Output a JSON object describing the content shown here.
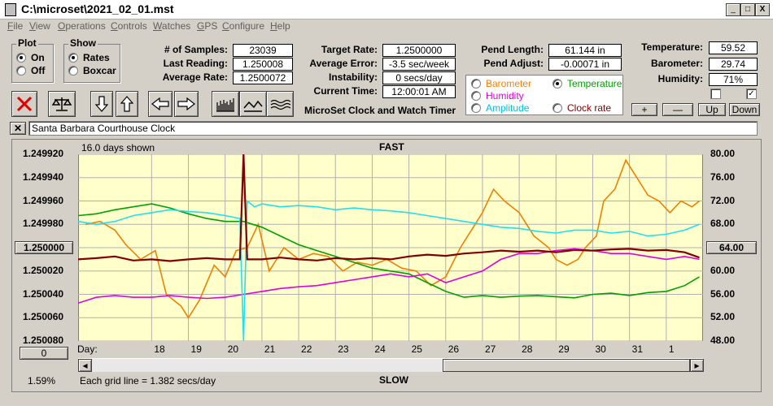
{
  "window": {
    "title": "C:\\microset\\2021_02_01.mst",
    "min": "_",
    "max": "□",
    "close": "X"
  },
  "menu": [
    "File",
    "View",
    "Operations",
    "Controls",
    "Watches",
    "GPS",
    "Configure",
    "Help"
  ],
  "plot_group": {
    "title": "Plot",
    "options": [
      "On",
      "Off"
    ],
    "selected": "On"
  },
  "show_group": {
    "title": "Show",
    "options": [
      "Rates",
      "Boxcar"
    ],
    "selected": "Rates"
  },
  "stats": {
    "samples_label": "# of Samples:",
    "samples": "23039",
    "last_reading_label": "Last Reading:",
    "last_reading": "1.250008",
    "average_rate_label": "Average Rate:",
    "average_rate": "1.2500072",
    "target_rate_label": "Target Rate:",
    "target_rate": "1.2500000",
    "average_error_label": "Average Error:",
    "average_error": "-3.5 sec/week",
    "instability_label": "Instability:",
    "instability": "0 secs/day",
    "current_time_label": "Current Time:",
    "current_time": "12:00:01 AM",
    "pend_length_label": "Pend Length:",
    "pend_length": "61.144 in",
    "pend_adjust_label": "Pend Adjust:",
    "pend_adjust": "-0.00071 in",
    "temperature_label": "Temperature:",
    "temperature": "59.52",
    "barometer_label": "Barometer:",
    "barometer": "29.74",
    "humidity_label": "Humidity:",
    "humidity": "71%"
  },
  "app_title": "MicroSet Clock and Watch Timer",
  "series_options": [
    {
      "label": "Barometer",
      "color": "#ff8000",
      "selected": false
    },
    {
      "label": "Temperature",
      "color": "#00a000",
      "selected": true
    },
    {
      "label": "Humidity",
      "color": "#e000e0",
      "selected": false
    },
    {
      "label": "Amplitude",
      "color": "#00c0e0",
      "selected": false
    },
    {
      "label": "Clock rate",
      "color": "#800000",
      "selected": false
    }
  ],
  "scale_buttons": [
    "+",
    "—",
    "Up",
    "Down"
  ],
  "clock_name": "Santa Barbara Courthouse Clock",
  "chart_labels": {
    "days_shown": "16.0 days shown",
    "fast": "FAST",
    "slow": "SLOW",
    "grid_note": "Each grid line = 1.382 secs/day",
    "percent": "1.59%",
    "center_left": "1.250000",
    "center_right": "64.00",
    "left_bottom_btn": "0",
    "day_prefix": "Day:"
  },
  "chart_data": {
    "type": "line",
    "left_axis_ticks": [
      "1.249920",
      "1.249940",
      "1.249960",
      "1.249980",
      "1.250000",
      "1.250020",
      "1.250040",
      "1.250060",
      "1.250080"
    ],
    "right_axis_ticks": [
      "80.00",
      "76.00",
      "72.00",
      "68.00",
      "64.00",
      "60.00",
      "56.00",
      "52.00",
      "48.00"
    ],
    "days": [
      "18",
      "19",
      "20",
      "21",
      "22",
      "23",
      "24",
      "25",
      "26",
      "27",
      "28",
      "29",
      "30",
      "31",
      "1"
    ],
    "right_ylim": [
      48,
      80
    ],
    "series": [
      {
        "name": "Barometer",
        "color": "#f08000",
        "x": [
          16.2,
          16.6,
          17.0,
          17.3,
          17.7,
          18.1,
          18.4,
          18.8,
          19.0,
          19.3,
          19.7,
          20.0,
          20.3,
          20.6,
          20.9,
          21.2,
          21.6,
          22.0,
          22.4,
          22.8,
          23.2,
          23.6,
          24.0,
          24.4,
          24.8,
          25.2,
          25.6,
          26.0,
          26.4,
          26.8,
          27.0,
          27.3,
          27.6,
          28.0,
          28.4,
          28.8,
          29.0,
          29.3,
          29.6,
          29.8,
          30.1,
          30.3,
          30.6,
          30.9,
          31.2,
          31.5,
          31.8,
          32.1,
          32.4,
          32.7,
          32.9
        ],
        "y": [
          68.0,
          68.5,
          67.0,
          64.5,
          62.0,
          63.5,
          56.0,
          54.0,
          52.0,
          55.0,
          61.0,
          59.0,
          63.5,
          64.0,
          68.0,
          60.0,
          64.0,
          62.0,
          63.0,
          62.5,
          60.0,
          61.5,
          61.0,
          62.0,
          60.5,
          60.0,
          57.5,
          59.0,
          64.0,
          68.0,
          70.0,
          74.0,
          72.0,
          70.0,
          66.0,
          64.0,
          62.0,
          61.0,
          62.0,
          64.0,
          66.0,
          72.0,
          74.0,
          79.0,
          76.0,
          73.0,
          72.0,
          70.0,
          72.0,
          71.0,
          72.0
        ]
      },
      {
        "name": "Temperature",
        "color": "#00a000",
        "x": [
          16.0,
          16.5,
          17.0,
          17.5,
          18.0,
          18.5,
          19.0,
          19.5,
          20.0,
          20.5,
          21.0,
          21.5,
          22.0,
          22.5,
          23.0,
          23.5,
          24.0,
          24.5,
          25.0,
          25.5,
          26.0,
          26.5,
          27.0,
          27.5,
          28.0,
          28.5,
          29.0,
          29.5,
          30.0,
          30.5,
          31.0,
          31.5,
          32.0,
          32.5,
          32.9
        ],
        "y": [
          69.5,
          69.8,
          70.5,
          71.0,
          71.5,
          70.8,
          69.8,
          69.0,
          68.5,
          68.5,
          67.5,
          66.0,
          64.5,
          63.5,
          62.5,
          61.5,
          60.5,
          60.0,
          59.5,
          58.0,
          56.5,
          55.5,
          55.8,
          55.5,
          55.7,
          55.8,
          55.6,
          55.4,
          56.0,
          56.2,
          55.8,
          56.3,
          56.5,
          57.5,
          59.0
        ]
      },
      {
        "name": "Humidity",
        "color": "#e000e0",
        "x": [
          16.0,
          16.5,
          17.0,
          17.5,
          18.0,
          18.5,
          19.0,
          19.5,
          20.0,
          20.5,
          21.0,
          21.5,
          22.0,
          22.5,
          23.0,
          23.5,
          24.0,
          24.5,
          25.0,
          25.5,
          26.0,
          26.5,
          27.0,
          27.5,
          28.0,
          28.5,
          29.0,
          29.5,
          30.0,
          30.5,
          31.0,
          31.5,
          32.0,
          32.5,
          32.9
        ],
        "y": [
          54.5,
          55.5,
          55.8,
          55.5,
          55.5,
          55.8,
          55.5,
          55.3,
          55.5,
          56.0,
          56.5,
          57.0,
          57.3,
          57.5,
          58.0,
          58.5,
          59.0,
          59.5,
          59.0,
          59.5,
          58.0,
          59.0,
          60.0,
          62.0,
          63.0,
          63.0,
          63.5,
          63.8,
          63.5,
          63.0,
          63.0,
          62.5,
          62.0,
          62.5,
          62.0
        ]
      },
      {
        "name": "Amplitude",
        "color": "#20e0f0",
        "x": [
          16.0,
          16.5,
          17.0,
          17.5,
          18.0,
          18.5,
          19.0,
          19.5,
          20.0,
          20.4,
          20.5,
          20.6,
          20.8,
          21.0,
          21.5,
          22.0,
          22.5,
          23.0,
          23.5,
          24.0,
          24.5,
          25.0,
          25.5,
          26.0,
          26.5,
          27.0,
          27.5,
          28.0,
          28.5,
          29.0,
          29.5,
          30.0,
          30.5,
          31.0,
          31.5,
          32.0,
          32.5,
          32.9
        ],
        "y": [
          68.5,
          68.0,
          68.5,
          69.5,
          70.0,
          70.5,
          70.2,
          70.0,
          69.5,
          69.0,
          48.0,
          72.0,
          71.0,
          71.5,
          71.0,
          71.2,
          71.0,
          70.5,
          70.8,
          70.5,
          70.3,
          70.0,
          69.5,
          69.0,
          68.5,
          68.0,
          67.5,
          67.3,
          66.8,
          66.5,
          67.0,
          67.0,
          66.5,
          66.8,
          66.0,
          66.3,
          67.0,
          68.0
        ]
      },
      {
        "name": "Clock rate",
        "color": "#800000",
        "x": [
          16.0,
          16.5,
          17.0,
          17.5,
          18.0,
          18.5,
          19.0,
          19.5,
          20.0,
          20.4,
          20.5,
          20.6,
          21.0,
          21.5,
          22.0,
          22.5,
          23.0,
          23.5,
          24.0,
          24.5,
          25.0,
          25.5,
          26.0,
          26.5,
          27.0,
          27.5,
          28.0,
          28.5,
          29.0,
          29.5,
          30.0,
          30.5,
          31.0,
          31.5,
          32.0,
          32.5,
          32.9
        ],
        "y": [
          62.0,
          62.2,
          62.5,
          61.8,
          62.0,
          61.7,
          62.0,
          62.2,
          62.0,
          62.0,
          80.0,
          62.0,
          62.0,
          62.3,
          62.0,
          61.8,
          62.2,
          62.0,
          62.2,
          62.0,
          62.5,
          62.8,
          62.6,
          63.0,
          63.2,
          63.5,
          63.3,
          63.5,
          63.2,
          63.6,
          63.5,
          63.7,
          63.8,
          63.5,
          63.6,
          63.2,
          62.3
        ]
      }
    ]
  }
}
